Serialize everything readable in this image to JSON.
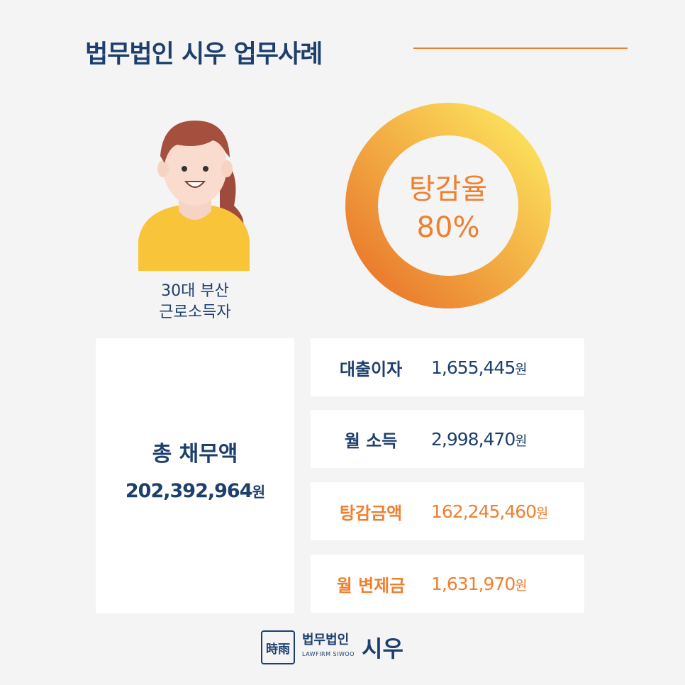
{
  "header": {
    "title": "법무법인 시우 업무사례"
  },
  "profile": {
    "line1": "30대 부산",
    "line2": "근로소득자"
  },
  "rate": {
    "label": "탕감율",
    "value": "80%"
  },
  "total": {
    "label": "총 채무액",
    "amount": "202,392,964",
    "unit": "원"
  },
  "items": [
    {
      "label": "대출이자",
      "amount": "1,655,445",
      "unit": "원"
    },
    {
      "label": "월 소득",
      "amount": "2,998,470",
      "unit": "원"
    },
    {
      "label": "탕감금액",
      "amount": "162,245,460",
      "unit": "원"
    },
    {
      "label": "월 변제금",
      "amount": "1,631,970",
      "unit": "원"
    }
  ],
  "footer": {
    "logo_mark": "時雨",
    "name": "법무법인",
    "sub": "LAWFIRM SIWOO",
    "brand": "시우"
  }
}
